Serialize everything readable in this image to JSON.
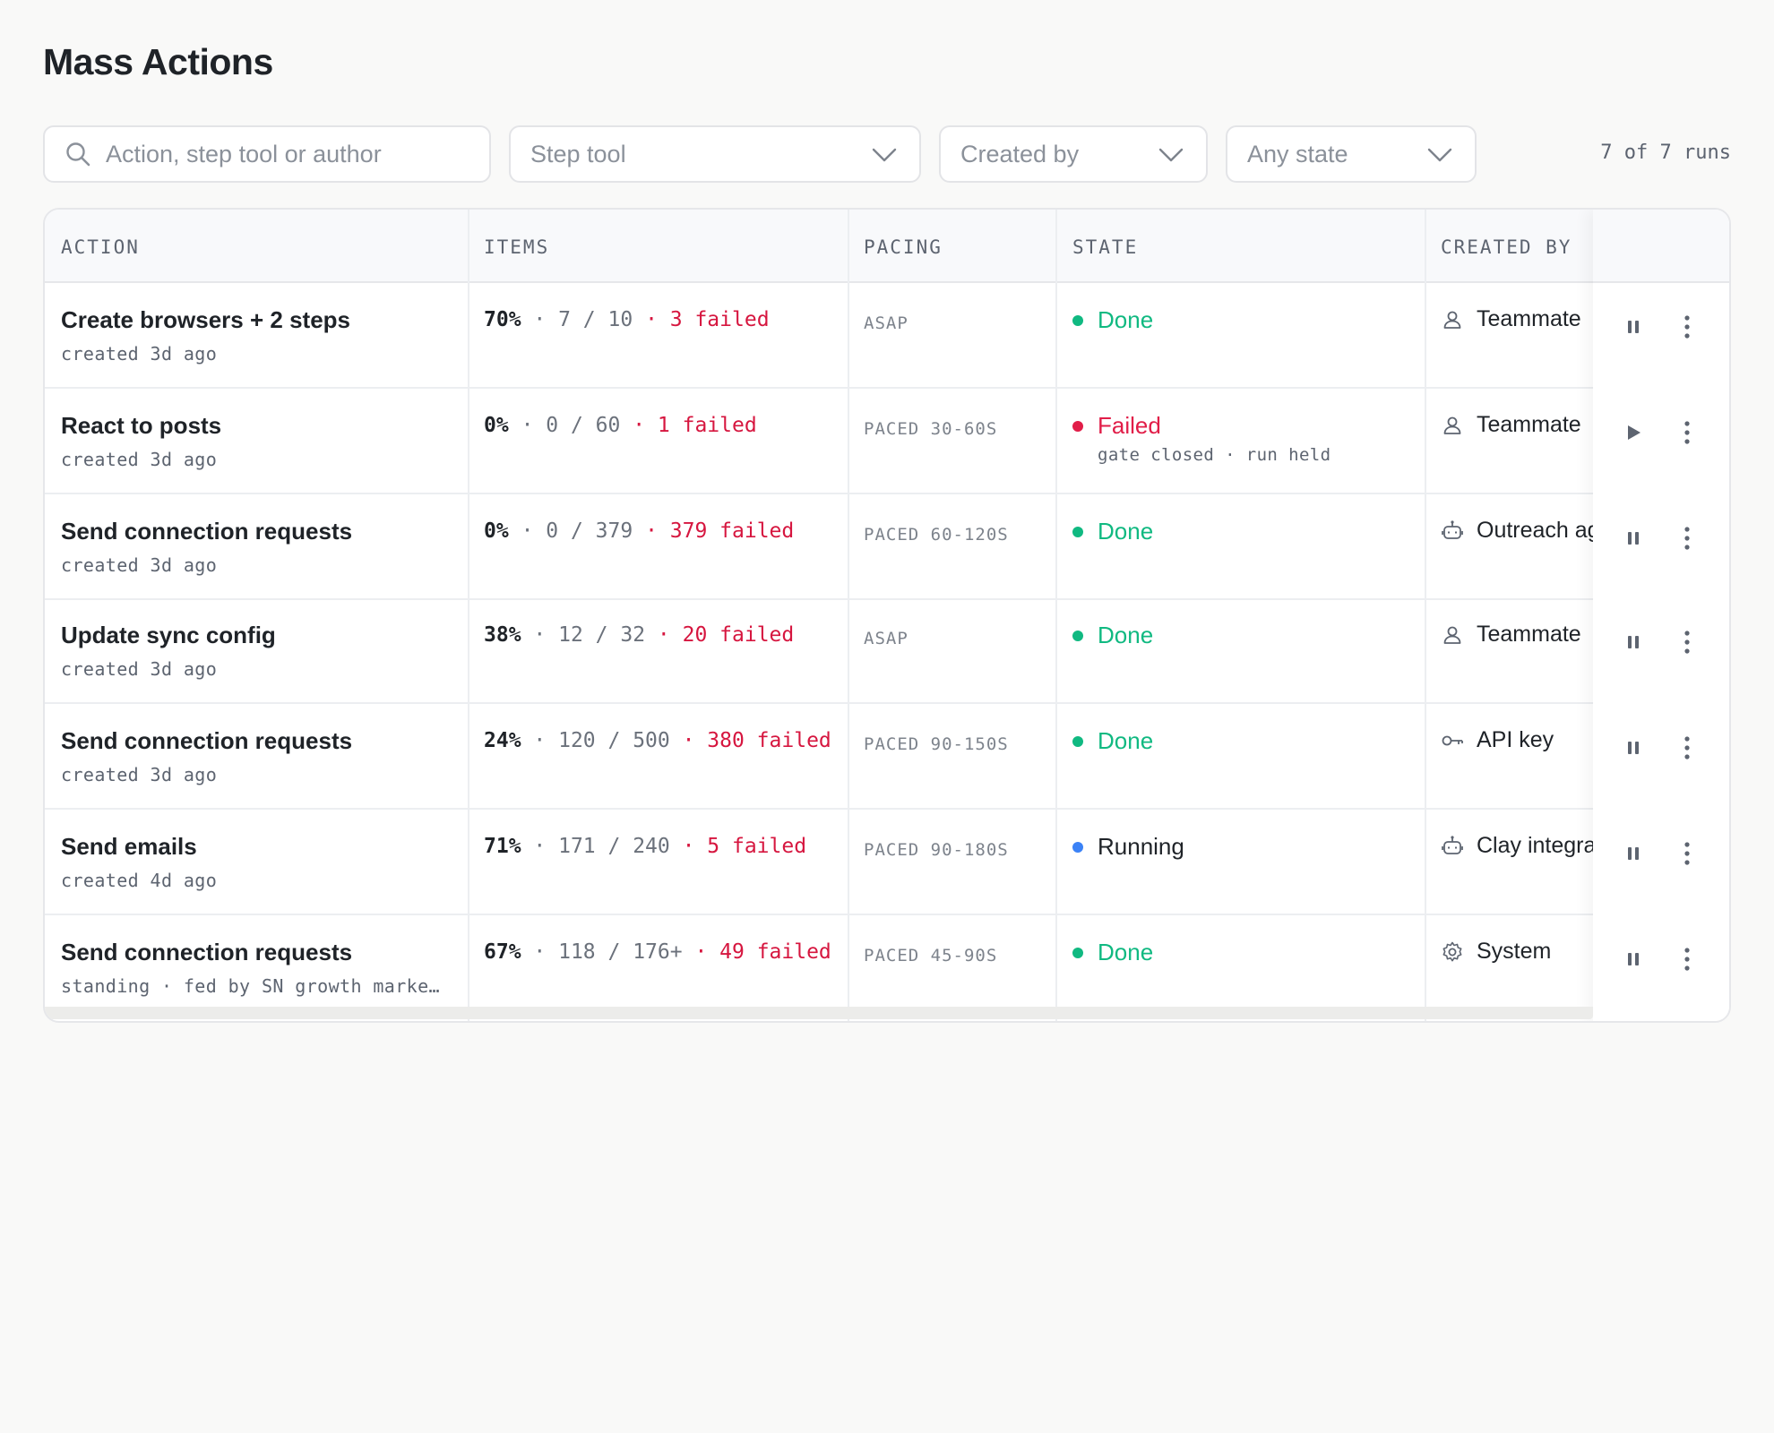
{
  "page": {
    "title": "Mass Actions"
  },
  "toolbar": {
    "search_placeholder": "Action, step tool or author",
    "step_tool_label": "Step tool",
    "created_by_label": "Created by",
    "state_label": "Any state",
    "run_count": "7 of 7 runs"
  },
  "table": {
    "headers": {
      "action": "ACTION",
      "items": "ITEMS",
      "pacing": "PACING",
      "state": "STATE",
      "created_by": "CREATED BY"
    },
    "colors": {
      "done": "#10b981",
      "failed": "#e11d48",
      "running": "#3b82f6",
      "failed_text": "#d6163f"
    },
    "rows": [
      {
        "name": "Create browsers + 2 steps",
        "sub": "created 3d ago",
        "pct": "70%",
        "count": "7 / 10",
        "failed": "3 failed",
        "pacing": "ASAP",
        "state": "Done",
        "state_sub": "",
        "creator": "Teammate",
        "creator_icon": "user-icon",
        "action_icon": "pause-icon"
      },
      {
        "name": "React to posts",
        "sub": "created 3d ago",
        "pct": "0%",
        "count": "0 / 60",
        "failed": "1 failed",
        "pacing": "PACED 30-60S",
        "state": "Failed",
        "state_sub": "gate closed · run held",
        "creator": "Teammate",
        "creator_icon": "user-icon",
        "action_icon": "play-icon"
      },
      {
        "name": "Send connection requests",
        "sub": "created 3d ago",
        "pct": "0%",
        "count": "0 / 379",
        "failed": "379 failed",
        "pacing": "PACED 60-120S",
        "state": "Done",
        "state_sub": "",
        "creator": "Outreach ag",
        "creator_icon": "bot-icon",
        "action_icon": "pause-icon"
      },
      {
        "name": "Update sync config",
        "sub": "created 3d ago",
        "pct": "38%",
        "count": "12 / 32",
        "failed": "20 failed",
        "pacing": "ASAP",
        "state": "Done",
        "state_sub": "",
        "creator": "Teammate",
        "creator_icon": "user-icon",
        "action_icon": "pause-icon"
      },
      {
        "name": "Send connection requests",
        "sub": "created 3d ago",
        "pct": "24%",
        "count": "120 / 500",
        "failed": "380 failed",
        "pacing": "PACED 90-150S",
        "state": "Done",
        "state_sub": "",
        "creator": "API key",
        "creator_icon": "key-icon",
        "action_icon": "pause-icon"
      },
      {
        "name": "Send emails",
        "sub": "created 4d ago",
        "pct": "71%",
        "count": "171 / 240",
        "failed": "5 failed",
        "pacing": "PACED 90-180S",
        "state": "Running",
        "state_sub": "",
        "creator": "Clay integra",
        "creator_icon": "bot-icon",
        "action_icon": "pause-icon"
      },
      {
        "name": "Send connection requests",
        "sub": "standing · fed by SN growth marke…",
        "pct": "67%",
        "count": "118 / 176+",
        "failed": "49 failed",
        "pacing": "PACED 45-90S",
        "state": "Done",
        "state_sub": "",
        "creator": "System",
        "creator_icon": "gear-icon",
        "action_icon": "pause-icon"
      }
    ]
  }
}
